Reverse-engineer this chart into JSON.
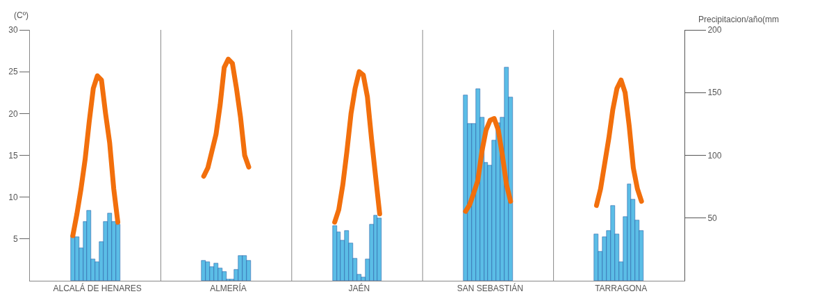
{
  "chart_data": {
    "type": "bar",
    "ylabel": "(Cº)",
    "y2label": "Precipitacion/año(mm",
    "categories": [
      null,
      null,
      null,
      null,
      null,
      null,
      null,
      null,
      null,
      null,
      null,
      null,
      null,
      null,
      null,
      null,
      "ALCALÁ DE HENARES",
      null,
      null,
      null,
      null,
      null,
      null,
      null,
      null,
      null,
      null,
      null,
      null,
      null,
      null,
      null,
      null,
      null,
      null,
      null,
      null,
      null,
      null,
      null,
      null,
      null,
      null,
      null,
      null,
      null,
      null,
      null,
      "ALMERÍA",
      null,
      null,
      null,
      null,
      null,
      null,
      null,
      null,
      null,
      null,
      null,
      null,
      null,
      null,
      null,
      null,
      null,
      null,
      null,
      null,
      null,
      null,
      null,
      null,
      null,
      null,
      null,
      null,
      null,
      null,
      null,
      "JAÉN",
      null,
      null,
      null,
      null,
      null,
      null,
      null,
      null,
      null,
      null,
      null,
      null,
      null,
      null,
      null,
      null,
      null,
      null,
      null,
      null,
      null,
      null,
      null,
      null,
      null,
      null,
      null,
      null,
      null,
      null,
      null,
      "SAN SEBASTIÁN",
      null,
      null,
      null,
      null,
      null,
      null,
      null,
      null,
      null,
      null,
      null,
      null,
      null,
      null,
      null,
      null,
      null,
      null,
      null,
      null,
      null,
      null,
      null,
      null,
      null,
      null,
      null,
      null,
      null,
      null,
      null,
      "TARRAGONA",
      null,
      null,
      null,
      null,
      null,
      null,
      null,
      null,
      null,
      null,
      null,
      null,
      null,
      null,
      null
    ],
    "ylim": [
      0,
      30
    ],
    "yticks": [
      5,
      10,
      15,
      20,
      25,
      30
    ],
    "y2lim": [
      0,
      200
    ],
    "y2ticks": [
      50,
      100,
      150,
      200
    ],
    "series": [
      {
        "axis": "y2",
        "color": "#5bbde6",
        "values": [
          null,
          null,
          null,
          null,
          null,
          null,
          null,
          null,
          null,
          null,
          36,
          35,
          26,
          47,
          56,
          17,
          15,
          31,
          47,
          54,
          47,
          45,
          null,
          null,
          null,
          null,
          null,
          null,
          null,
          null,
          null,
          null,
          null,
          null,
          null,
          null,
          null,
          null,
          null,
          null,
          null,
          null,
          16,
          15,
          11,
          14,
          10,
          7,
          1,
          1,
          9,
          20,
          20,
          16,
          null,
          null,
          null,
          null,
          null,
          null,
          null,
          null,
          null,
          null,
          null,
          null,
          null,
          null,
          null,
          null,
          null,
          null,
          null,
          null,
          44,
          39,
          32,
          40,
          30,
          18,
          5,
          3,
          17,
          45,
          52,
          50,
          null,
          null,
          null,
          null,
          null,
          null,
          null,
          null,
          null,
          null,
          null,
          null,
          null,
          null,
          null,
          null,
          null,
          null,
          null,
          null,
          148,
          125,
          125,
          153,
          130,
          94,
          92,
          112,
          126,
          130,
          170,
          146,
          null,
          null,
          null,
          null,
          null,
          null,
          null,
          null,
          null,
          null,
          null,
          null,
          null,
          null,
          null,
          null,
          null,
          null,
          null,
          null,
          37,
          23,
          35,
          40,
          60,
          37,
          15,
          51,
          77,
          65,
          48,
          40,
          null,
          null,
          null,
          null,
          null,
          null,
          null,
          null,
          null,
          null
        ]
      },
      {
        "type": "line",
        "color": "#f26f0c",
        "values": [
          null,
          null,
          null,
          null,
          null,
          null,
          null,
          null,
          null,
          null,
          5.4,
          8,
          11,
          14.5,
          19,
          23,
          24.5,
          24,
          20,
          16.5,
          11,
          7,
          null,
          null,
          null,
          null,
          null,
          null,
          null,
          null,
          null,
          null,
          null,
          null,
          null,
          null,
          null,
          null,
          null,
          null,
          null,
          null,
          null,
          null,
          null,
          null,
          null,
          null,
          null,
          null,
          null,
          null,
          null,
          null,
          null,
          null,
          null,
          null,
          null,
          null,
          null,
          null,
          null,
          null,
          null,
          null,
          null,
          null,
          null,
          null,
          null,
          null,
          null,
          null,
          null,
          null,
          null,
          null,
          null,
          null,
          null,
          null,
          null,
          null,
          null,
          null,
          null,
          null,
          null,
          null,
          null,
          null,
          null,
          null,
          null,
          null,
          null,
          null,
          null,
          null,
          null,
          null,
          null,
          null,
          null,
          null,
          null,
          null,
          null,
          null,
          null,
          null,
          null,
          null,
          null,
          null,
          null,
          null,
          null,
          null,
          null,
          null,
          null,
          null,
          null,
          null,
          null,
          null,
          null,
          null,
          null,
          null,
          null,
          null,
          null,
          null,
          null,
          null,
          null,
          null,
          null,
          null,
          null,
          null,
          null,
          null,
          null,
          null,
          null,
          null,
          null,
          null,
          null,
          null,
          null,
          null,
          null,
          null,
          null,
          null
        ]
      },
      {
        "type": "line",
        "color": "#f26f0c",
        "values": [
          null,
          null,
          null,
          null,
          null,
          null,
          null,
          null,
          null,
          null,
          null,
          null,
          null,
          null,
          null,
          null,
          null,
          null,
          null,
          null,
          null,
          null,
          null,
          null,
          null,
          null,
          null,
          null,
          null,
          null,
          null,
          null,
          null,
          null,
          null,
          null,
          null,
          null,
          null,
          null,
          null,
          null,
          12.5,
          13.5,
          15.5,
          17.5,
          21,
          25.5,
          26.5,
          26,
          23,
          19.5,
          15,
          13.6,
          null,
          null,
          null,
          null,
          null,
          null,
          null,
          null,
          null,
          null,
          null,
          null,
          null,
          null,
          null,
          null,
          null,
          null,
          null,
          null,
          null,
          null,
          null,
          null,
          null,
          null,
          null,
          null,
          null,
          null,
          null,
          null,
          null,
          null,
          null,
          null,
          null,
          null,
          null,
          null,
          null,
          null,
          null,
          null,
          null,
          null,
          null,
          null,
          null,
          null,
          null,
          null,
          null,
          null,
          null,
          null,
          null,
          null,
          null,
          null,
          null,
          null,
          null,
          null,
          null,
          null,
          null,
          null,
          null,
          null,
          null,
          null,
          null,
          null,
          null,
          null,
          null,
          null,
          null,
          null,
          null,
          null,
          null,
          null,
          null,
          null,
          null,
          null,
          null,
          null,
          null,
          null,
          null,
          null,
          null,
          null,
          null,
          null,
          null,
          null,
          null,
          null,
          null,
          null,
          null,
          null
        ]
      },
      {
        "type": "line",
        "color": "#f26f0c",
        "values": [
          null,
          null,
          null,
          null,
          null,
          null,
          null,
          null,
          null,
          null,
          null,
          null,
          null,
          null,
          null,
          null,
          null,
          null,
          null,
          null,
          null,
          null,
          null,
          null,
          null,
          null,
          null,
          null,
          null,
          null,
          null,
          null,
          null,
          null,
          null,
          null,
          null,
          null,
          null,
          null,
          null,
          null,
          null,
          null,
          null,
          null,
          null,
          null,
          null,
          null,
          null,
          null,
          null,
          null,
          null,
          null,
          null,
          null,
          null,
          null,
          null,
          null,
          null,
          null,
          null,
          null,
          null,
          null,
          null,
          null,
          null,
          null,
          null,
          null,
          7,
          8.5,
          11.5,
          15.5,
          20,
          23,
          25,
          24.6,
          22,
          17,
          12.5,
          8,
          null,
          null,
          null,
          null,
          null,
          null,
          null,
          null,
          null,
          null,
          null,
          null,
          null,
          null,
          null,
          null,
          null,
          null,
          null,
          null,
          null,
          null,
          null,
          null,
          null,
          null,
          null,
          null,
          null,
          null,
          null,
          null,
          null,
          null,
          null,
          null,
          null,
          null,
          null,
          null,
          null,
          null,
          null,
          null,
          null,
          null,
          null,
          null,
          null,
          null,
          null,
          null,
          null,
          null,
          null,
          null,
          null,
          null,
          null,
          null,
          null,
          null,
          null,
          null,
          null,
          null,
          null,
          null,
          null,
          null,
          null,
          null,
          null,
          null
        ]
      },
      {
        "type": "line",
        "color": "#f26f0c",
        "values": [
          null,
          null,
          null,
          null,
          null,
          null,
          null,
          null,
          null,
          null,
          null,
          null,
          null,
          null,
          null,
          null,
          null,
          null,
          null,
          null,
          null,
          null,
          null,
          null,
          null,
          null,
          null,
          null,
          null,
          null,
          null,
          null,
          null,
          null,
          null,
          null,
          null,
          null,
          null,
          null,
          null,
          null,
          null,
          null,
          null,
          null,
          null,
          null,
          null,
          null,
          null,
          null,
          null,
          null,
          null,
          null,
          null,
          null,
          null,
          null,
          null,
          null,
          null,
          null,
          null,
          null,
          null,
          null,
          null,
          null,
          null,
          null,
          null,
          null,
          null,
          null,
          null,
          null,
          null,
          null,
          null,
          null,
          null,
          null,
          null,
          null,
          null,
          null,
          null,
          null,
          null,
          null,
          null,
          null,
          null,
          null,
          null,
          null,
          null,
          null,
          null,
          null,
          null,
          null,
          null,
          null,
          8.3,
          9.1,
          10.5,
          12,
          15.5,
          18,
          19.2,
          19.4,
          18,
          15,
          11.5,
          9.5,
          null,
          null,
          null,
          null,
          null,
          null,
          null,
          null,
          null,
          null,
          null,
          null,
          null,
          null,
          null,
          null,
          null,
          null,
          null,
          null,
          null,
          null,
          null,
          null,
          null,
          null,
          null,
          null,
          null,
          null,
          null,
          null,
          null,
          null,
          null,
          null,
          null,
          null,
          null,
          null,
          null,
          null
        ]
      },
      {
        "type": "line",
        "color": "#f26f0c",
        "values": [
          null,
          null,
          null,
          null,
          null,
          null,
          null,
          null,
          null,
          null,
          null,
          null,
          null,
          null,
          null,
          null,
          null,
          null,
          null,
          null,
          null,
          null,
          null,
          null,
          null,
          null,
          null,
          null,
          null,
          null,
          null,
          null,
          null,
          null,
          null,
          null,
          null,
          null,
          null,
          null,
          null,
          null,
          null,
          null,
          null,
          null,
          null,
          null,
          null,
          null,
          null,
          null,
          null,
          null,
          null,
          null,
          null,
          null,
          null,
          null,
          null,
          null,
          null,
          null,
          null,
          null,
          null,
          null,
          null,
          null,
          null,
          null,
          null,
          null,
          null,
          null,
          null,
          null,
          null,
          null,
          null,
          null,
          null,
          null,
          null,
          null,
          null,
          null,
          null,
          null,
          null,
          null,
          null,
          null,
          null,
          null,
          null,
          null,
          null,
          null,
          null,
          null,
          null,
          null,
          null,
          null,
          null,
          null,
          null,
          null,
          null,
          null,
          null,
          null,
          null,
          null,
          null,
          null,
          null,
          null,
          null,
          null,
          null,
          null,
          null,
          null,
          null,
          null,
          null,
          null,
          null,
          null,
          null,
          null,
          null,
          null,
          null,
          null,
          9,
          11,
          14,
          17,
          20.5,
          23,
          24,
          22.5,
          18.5,
          13.5,
          11,
          9.5,
          null,
          null,
          null,
          null,
          null,
          null,
          null,
          null,
          null,
          null
        ]
      }
    ]
  }
}
